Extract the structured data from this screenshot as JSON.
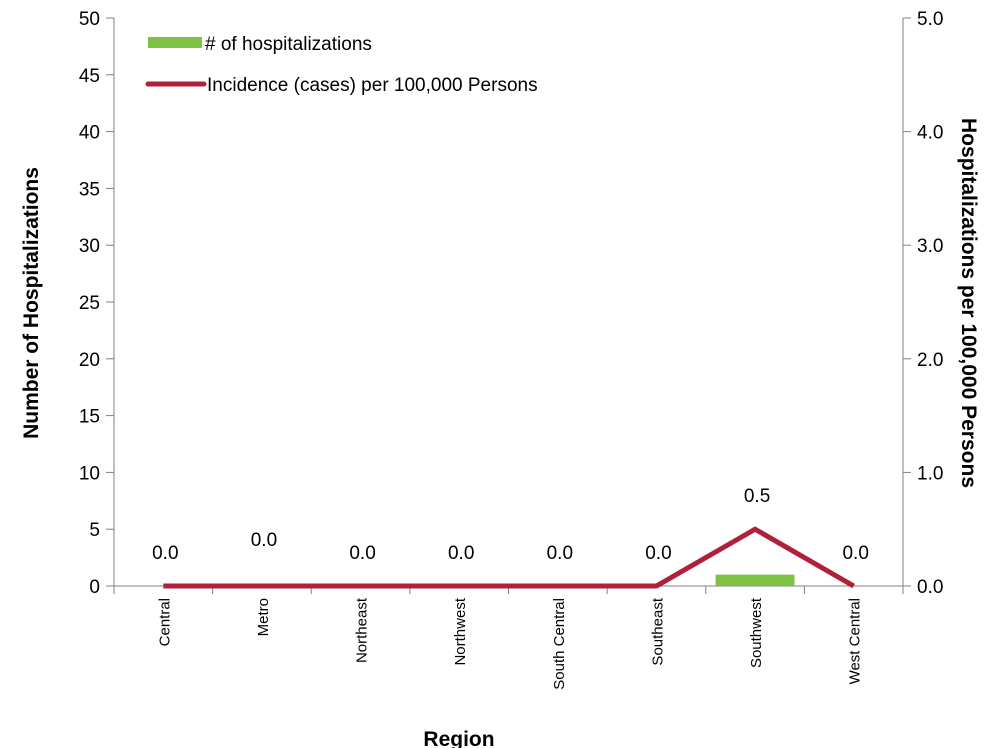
{
  "chart_data": {
    "type": "bar",
    "categories": [
      "Central",
      "Metro",
      "Northeast",
      "Northwest",
      "South Central",
      "Southeast",
      "Southwest",
      "West Central"
    ],
    "series": [
      {
        "name": "# of hospitalizations",
        "type": "bar",
        "axis": "left",
        "color": "#7dc242",
        "values": [
          0,
          0,
          0,
          0,
          0,
          0,
          1,
          0
        ]
      },
      {
        "name": "Incidence (cases) per 100,000 Persons",
        "type": "line",
        "axis": "right",
        "color": "#b0203b",
        "values": [
          0.0,
          0.0,
          0.0,
          0.0,
          0.0,
          0.0,
          0.5,
          0.0
        ]
      }
    ],
    "data_labels": [
      "0.0",
      "0.0",
      "0.0",
      "0.0",
      "0.0",
      "0.0",
      "0.5",
      "0.0"
    ],
    "xlabel": "Region",
    "ylabel": "Number of Hospitalizations",
    "y2label": "Hospitalizations per 100,000 Persons",
    "ylim": [
      0,
      50
    ],
    "y2lim": [
      0,
      5
    ],
    "yticks": [
      "0",
      "5",
      "10",
      "15",
      "20",
      "25",
      "30",
      "35",
      "40",
      "45",
      "50"
    ],
    "y2ticks": [
      "0.0",
      "1.0",
      "2.0",
      "3.0",
      "4.0",
      "5.0"
    ],
    "legend_position": "top-left",
    "grid": false
  }
}
